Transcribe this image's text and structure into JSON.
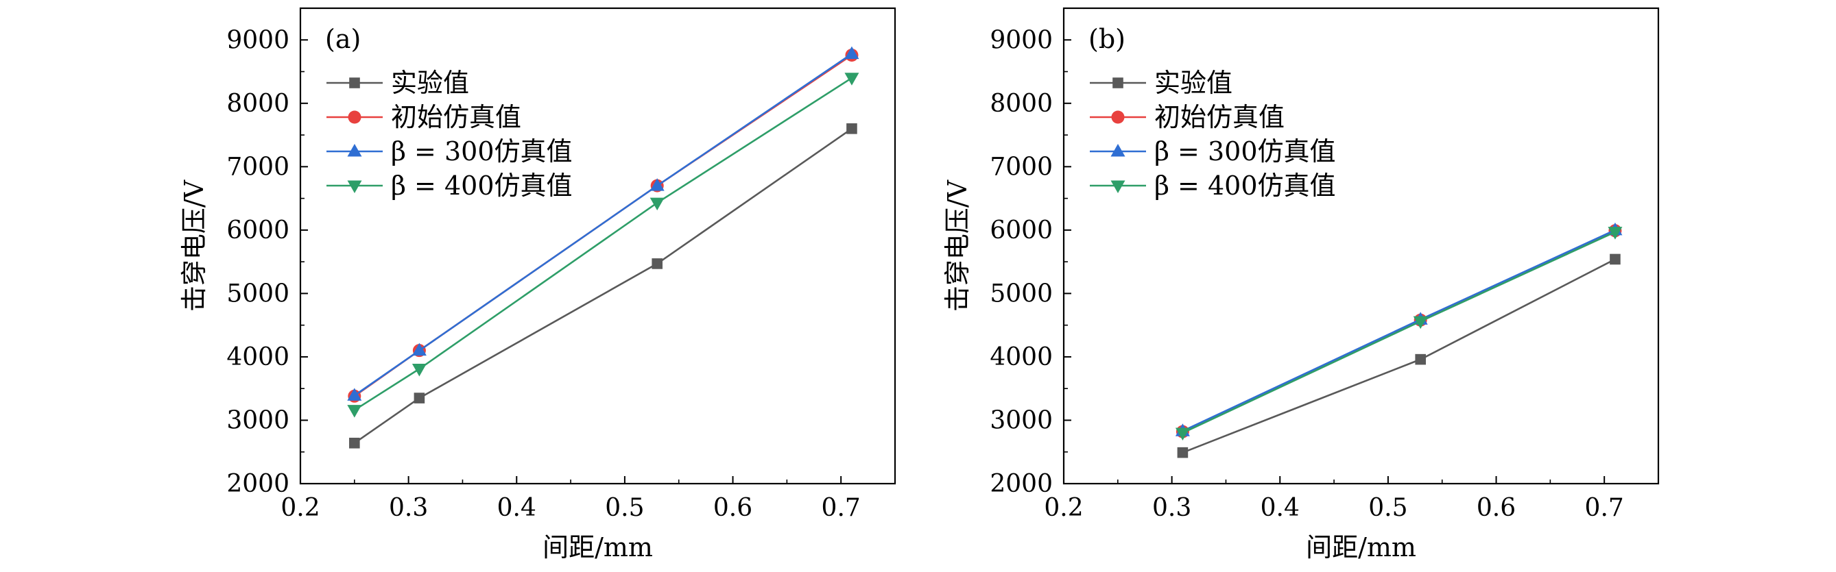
{
  "chart_data": [
    {
      "type": "line",
      "panel_label": "(a)",
      "xlabel": "间距/mm",
      "ylabel": "击穿电压/V",
      "xlim": [
        0.2,
        0.75
      ],
      "ylim": [
        2000,
        9500
      ],
      "xticks": [
        0.2,
        0.3,
        0.4,
        0.5,
        0.6,
        0.7
      ],
      "yticks": [
        2000,
        3000,
        4000,
        5000,
        6000,
        7000,
        8000,
        9000
      ],
      "xtick_labels": [
        "0.2",
        "0.3",
        "0.4",
        "0.5",
        "0.6",
        "0.7"
      ],
      "ytick_labels": [
        "2000",
        "3000",
        "4000",
        "5000",
        "6000",
        "7000",
        "8000",
        "9000"
      ],
      "legend_position": "top-left",
      "grid": false,
      "series": [
        {
          "name": "实验值",
          "color": "#595959",
          "marker": "square",
          "x": [
            0.25,
            0.31,
            0.53,
            0.71
          ],
          "y": [
            2640,
            3350,
            5470,
            7600
          ]
        },
        {
          "name": "初始仿真值",
          "color": "#e8413e",
          "marker": "circle",
          "x": [
            0.25,
            0.31,
            0.53,
            0.71
          ],
          "y": [
            3380,
            4100,
            6700,
            8760
          ]
        },
        {
          "name": "β = 300仿真值",
          "color": "#2f6ed3",
          "marker": "triangle-up",
          "x": [
            0.25,
            0.31,
            0.53,
            0.71
          ],
          "y": [
            3390,
            4100,
            6700,
            8780
          ]
        },
        {
          "name": "β = 400仿真值",
          "color": "#2e9e68",
          "marker": "triangle-down",
          "x": [
            0.25,
            0.31,
            0.53,
            0.71
          ],
          "y": [
            3160,
            3810,
            6430,
            8400
          ]
        }
      ]
    },
    {
      "type": "line",
      "panel_label": "(b)",
      "xlabel": "间距/mm",
      "ylabel": "击穿电压/V",
      "xlim": [
        0.2,
        0.75
      ],
      "ylim": [
        2000,
        9500
      ],
      "xticks": [
        0.2,
        0.3,
        0.4,
        0.5,
        0.6,
        0.7
      ],
      "yticks": [
        2000,
        3000,
        4000,
        5000,
        6000,
        7000,
        8000,
        9000
      ],
      "xtick_labels": [
        "0.2",
        "0.3",
        "0.4",
        "0.5",
        "0.6",
        "0.7"
      ],
      "ytick_labels": [
        "2000",
        "3000",
        "4000",
        "5000",
        "6000",
        "7000",
        "8000",
        "9000"
      ],
      "legend_position": "top-left",
      "grid": false,
      "series": [
        {
          "name": "实验值",
          "color": "#595959",
          "marker": "square",
          "x": [
            0.31,
            0.53,
            0.71
          ],
          "y": [
            2490,
            3960,
            5540
          ]
        },
        {
          "name": "初始仿真值",
          "color": "#e8413e",
          "marker": "circle",
          "x": [
            0.31,
            0.53,
            0.71
          ],
          "y": [
            2820,
            4580,
            5990
          ]
        },
        {
          "name": "β = 300仿真值",
          "color": "#2f6ed3",
          "marker": "triangle-up",
          "x": [
            0.31,
            0.53,
            0.71
          ],
          "y": [
            2830,
            4590,
            6000
          ]
        },
        {
          "name": "β = 400仿真值",
          "color": "#2e9e68",
          "marker": "triangle-down",
          "x": [
            0.31,
            0.53,
            0.71
          ],
          "y": [
            2800,
            4560,
            5970
          ]
        }
      ]
    }
  ]
}
